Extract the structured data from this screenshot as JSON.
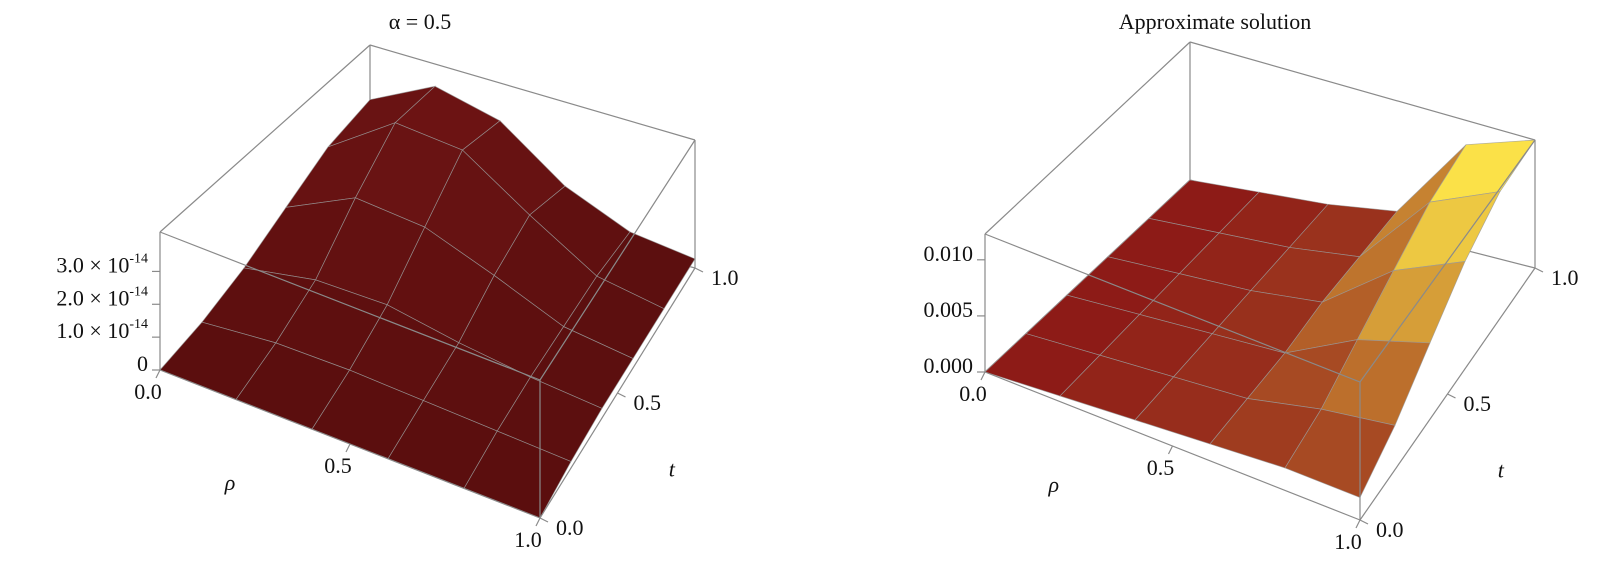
{
  "chart_data": [
    {
      "type": "surface",
      "title": "α = 0.5",
      "xlabel": "ρ",
      "ylabel": "t",
      "x": [
        0,
        0.2,
        0.4,
        0.6,
        0.8,
        1
      ],
      "y": [
        0,
        0.2,
        0.4,
        0.6,
        0.8,
        1
      ],
      "z": [
        [
          0,
          3e-15,
          8e-15,
          1.5e-14,
          2.2e-14,
          2.5e-14
        ],
        [
          0,
          5e-15,
          1.2e-14,
          2.5e-14,
          3.6e-14,
          3.5e-14
        ],
        [
          0,
          5e-15,
          1.2e-14,
          2.3e-14,
          3.4e-14,
          3e-14
        ],
        [
          0,
          4e-15,
          8e-15,
          1.5e-14,
          2e-14,
          1.5e-14
        ],
        [
          0,
          3e-15,
          5e-15,
          6e-15,
          7e-15,
          6e-15
        ],
        [
          0,
          2e-15,
          3e-15,
          3e-15,
          3e-15,
          3e-15
        ]
      ],
      "xlim": [
        0,
        1
      ],
      "ylim": [
        0,
        1
      ],
      "zlim": [
        0,
        4.2e-14
      ],
      "xticks": [
        {
          "value": 0,
          "label": "0.0"
        },
        {
          "value": 0.5,
          "label": "0.5"
        },
        {
          "value": 1,
          "label": "1.0"
        }
      ],
      "yticks": [
        {
          "value": 0,
          "label": "0.0"
        },
        {
          "value": 0.5,
          "label": "0.5"
        },
        {
          "value": 1,
          "label": "1.0"
        }
      ],
      "zticks": [
        0,
        {
          "value": 1e-14,
          "label": "1.0 × 10",
          "exponent": "-14"
        },
        {
          "value": 2e-14,
          "label": "2.0 × 10",
          "exponent": "-14"
        },
        {
          "value": 3e-14,
          "label": "3.0 × 10",
          "exponent": "-14"
        }
      ],
      "colors": [
        "#5a0e0e",
        "#6e1414"
      ]
    },
    {
      "type": "surface",
      "title": "Approximate solution",
      "xlabel": "ρ",
      "ylabel": "t",
      "x": [
        0,
        0.2,
        0.4,
        0.6,
        0.8,
        1
      ],
      "y": [
        0,
        0.2,
        0.4,
        0.6,
        0.8,
        1
      ],
      "z": [
        [
          0,
          0,
          0,
          0,
          0,
          0
        ],
        [
          0.0005,
          0.0005,
          0.0005,
          0.0005,
          0.0005,
          0.0005
        ],
        [
          0.001,
          0.001,
          0.001,
          0.001,
          0.001,
          0.001
        ],
        [
          0.0015,
          0.0015,
          0.0015,
          0.002,
          0.002,
          0.002
        ],
        [
          0.002,
          0.003,
          0.005,
          0.007,
          0.009,
          0.01
        ],
        [
          0.002,
          0.004,
          0.007,
          0.01,
          0.012,
          0.0123
        ]
      ],
      "xlim": [
        0,
        1
      ],
      "ylim": [
        0,
        1
      ],
      "zlim": [
        0,
        0.0123
      ],
      "xticks": [
        {
          "value": 0,
          "label": "0.0"
        },
        {
          "value": 0.5,
          "label": "0.5"
        },
        {
          "value": 1,
          "label": "1.0"
        }
      ],
      "yticks": [
        {
          "value": 0,
          "label": "0.0"
        },
        {
          "value": 0.5,
          "label": "0.5"
        },
        {
          "value": 1,
          "label": "1.0"
        }
      ],
      "zticks": [
        {
          "value": 0,
          "label": "0.000"
        },
        {
          "value": 0.005,
          "label": "0.005"
        },
        {
          "value": 0.01,
          "label": "0.010"
        }
      ],
      "colors": [
        "#8a1616",
        "#ffe84a"
      ]
    }
  ]
}
